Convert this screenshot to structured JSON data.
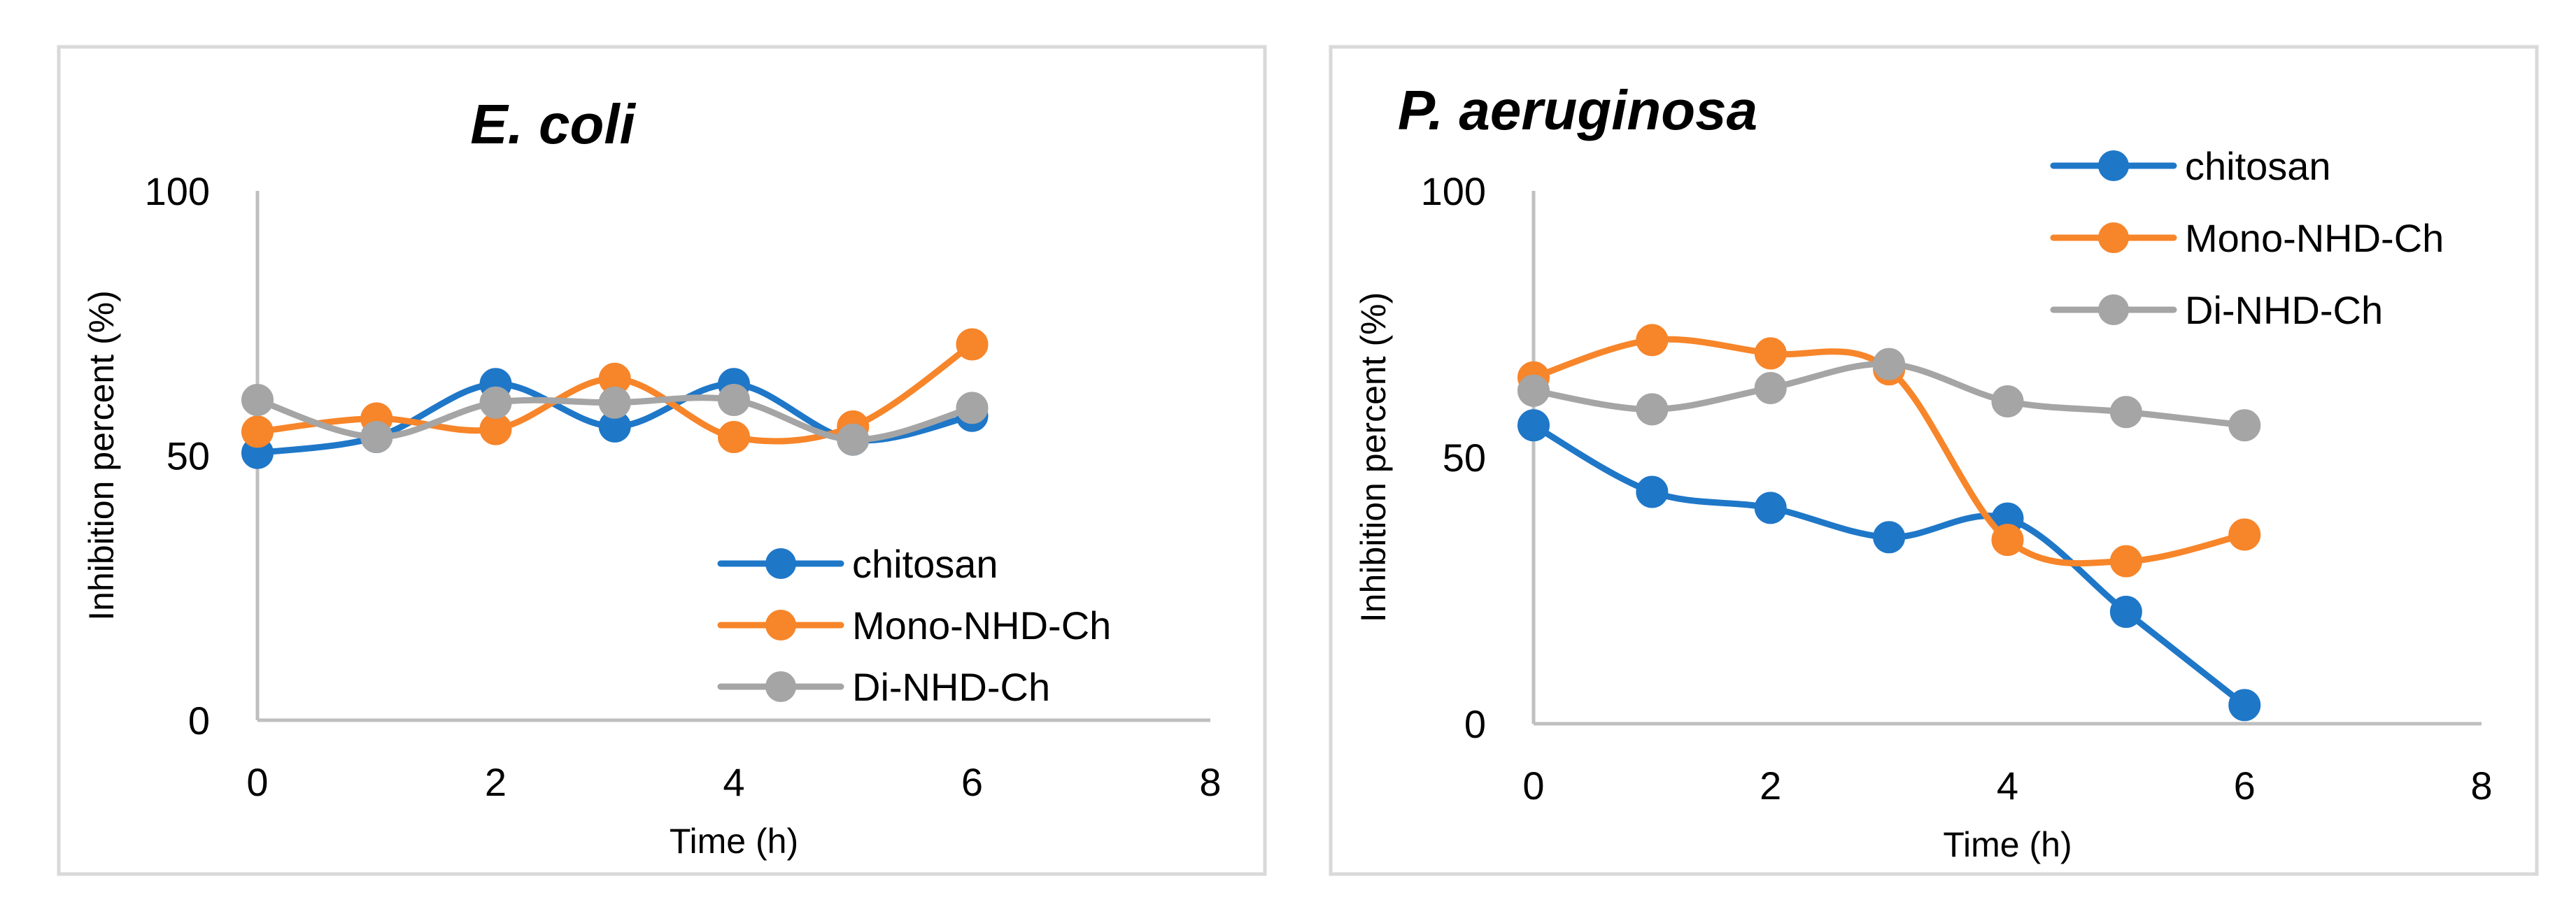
{
  "chart_data": [
    {
      "type": "line",
      "title": "E. coli",
      "xlabel": "Time (h)",
      "ylabel": "Inhibition percent (%)",
      "xlim": [
        0,
        8
      ],
      "ylim": [
        0,
        100
      ],
      "x_ticks": [
        "0",
        "2",
        "4",
        "6",
        "8"
      ],
      "y_ticks": [
        "0",
        "50",
        "100"
      ],
      "grid": false,
      "smooth": true,
      "legend_position": "bottom-right",
      "x": [
        0,
        1,
        2,
        3,
        4,
        5,
        6
      ],
      "series": [
        {
          "name": "chitosan",
          "color": "#1F77C8",
          "values": [
            50.5,
            53.5,
            63.5,
            55.5,
            63.5,
            53.0,
            57.5
          ]
        },
        {
          "name": "Mono-NHD-Ch",
          "color": "#F7852A",
          "values": [
            54.5,
            57.0,
            55.0,
            64.5,
            53.5,
            55.5,
            71.0
          ]
        },
        {
          "name": "Di-NHD-Ch",
          "color": "#A5A5A5",
          "values": [
            60.5,
            53.5,
            60.0,
            60.0,
            60.5,
            53.0,
            59.0
          ]
        }
      ]
    },
    {
      "type": "line",
      "title": "P. aeruginosa",
      "xlabel": "Time (h)",
      "ylabel": "Inhibition percent (%)",
      "xlim": [
        0,
        8
      ],
      "ylim": [
        0,
        100
      ],
      "x_ticks": [
        "0",
        "2",
        "4",
        "6",
        "8"
      ],
      "y_ticks": [
        "0",
        "50",
        "100"
      ],
      "grid": false,
      "smooth": true,
      "legend_position": "top-right",
      "x": [
        0,
        1,
        2,
        3,
        4,
        5,
        6
      ],
      "series": [
        {
          "name": "chitosan",
          "color": "#1F77C8",
          "values": [
            56.0,
            43.5,
            40.5,
            35.0,
            38.5,
            21.0,
            3.5
          ]
        },
        {
          "name": "Mono-NHD-Ch",
          "color": "#F7852A",
          "values": [
            65.0,
            72.0,
            69.5,
            66.5,
            34.5,
            30.5,
            35.5
          ]
        },
        {
          "name": "Di-NHD-Ch",
          "color": "#A5A5A5",
          "values": [
            62.5,
            59.0,
            63.0,
            67.5,
            60.5,
            58.5,
            56.0
          ]
        }
      ]
    }
  ]
}
